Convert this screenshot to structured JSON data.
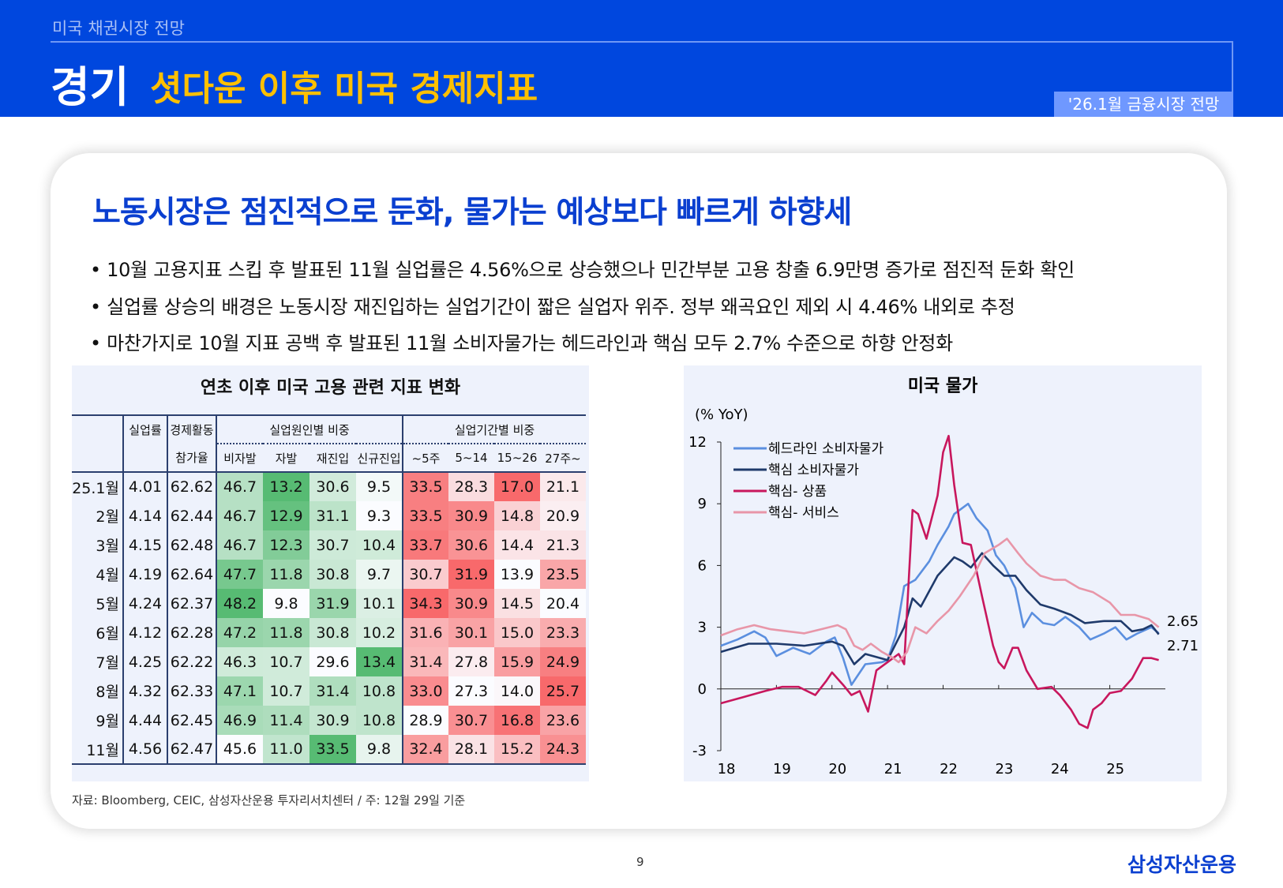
{
  "header": {
    "section": "미국 채권시장 전망",
    "category": "경기",
    "title": "셧다운 이후 미국 경제지표",
    "badge": "'26.1월 금융시장 전망"
  },
  "headline": "노동시장은 점진적으로 둔화, 물가는 예상보다 빠르게 하향세",
  "bullets": [
    "• 10월 고용지표 스킵 후 발표된 11월 실업률은 4.56%으로 상승했으나 민간부분 고용 창출 6.9만명 증가로 점진적 둔화 확인",
    "• 실업률 상승의 배경은 노동시장 재진입하는 실업기간이 짧은 실업자 위주. 정부 왜곡요인 제외 시 4.46% 내외로 추정",
    "• 마찬가지로 10월 지표 공백 후 발표된 11월 소비자물가는 헤드라인과 핵심 모두 2.7% 수준으로 하향 안정화"
  ],
  "table": {
    "title": "연초 이후 미국 고용 관련 지표 변화",
    "group_headers": [
      "실업률",
      "경제활동",
      "실업원인별 비중",
      "실업기간별 비중"
    ],
    "sub_headers": [
      "참가율",
      "비자발",
      "자발",
      "재진입",
      "신규진입",
      "~5주",
      "5~14",
      "15~26",
      "27주~"
    ],
    "heat_colors": {
      "low": "#fbfcff",
      "green": "#57bb73",
      "red": "#f8696b"
    },
    "rows": [
      [
        "25.1월",
        "4.01",
        "62.62",
        "46.7",
        "13.2",
        "30.6",
        "9.5",
        "33.5",
        "28.3",
        "17.0",
        "21.1"
      ],
      [
        "2월",
        "4.14",
        "62.44",
        "46.7",
        "12.9",
        "31.1",
        "9.3",
        "33.5",
        "30.9",
        "14.8",
        "20.9"
      ],
      [
        "3월",
        "4.15",
        "62.48",
        "46.7",
        "12.3",
        "30.7",
        "10.4",
        "33.7",
        "30.6",
        "14.4",
        "21.3"
      ],
      [
        "4월",
        "4.19",
        "62.64",
        "47.7",
        "11.8",
        "30.8",
        "9.7",
        "30.7",
        "31.9",
        "13.9",
        "23.5"
      ],
      [
        "5월",
        "4.24",
        "62.37",
        "48.2",
        "9.8",
        "31.9",
        "10.1",
        "34.3",
        "30.9",
        "14.5",
        "20.4"
      ],
      [
        "6월",
        "4.12",
        "62.28",
        "47.2",
        "11.8",
        "30.8",
        "10.2",
        "31.6",
        "30.1",
        "15.0",
        "23.3"
      ],
      [
        "7월",
        "4.25",
        "62.22",
        "46.3",
        "10.7",
        "29.6",
        "13.4",
        "31.4",
        "27.8",
        "15.9",
        "24.9"
      ],
      [
        "8월",
        "4.32",
        "62.33",
        "47.1",
        "10.7",
        "31.4",
        "10.8",
        "33.0",
        "27.3",
        "14.0",
        "25.7"
      ],
      [
        "9월",
        "4.44",
        "62.45",
        "46.9",
        "11.4",
        "30.9",
        "10.8",
        "28.9",
        "30.7",
        "16.8",
        "23.6"
      ],
      [
        "11월",
        "4.56",
        "62.47",
        "45.6",
        "11.0",
        "33.5",
        "9.8",
        "32.4",
        "28.1",
        "15.2",
        "24.3"
      ]
    ]
  },
  "chart_data": {
    "type": "line",
    "title": "미국 물가",
    "ylabel": "(% YoY)",
    "ylim": [
      -3,
      12
    ],
    "yticks": [
      "12",
      "9",
      "6",
      "3",
      "0",
      "-3"
    ],
    "xlim": [
      2018,
      2026
    ],
    "xticks": [
      "18",
      "19",
      "20",
      "21",
      "22",
      "23",
      "24",
      "25"
    ],
    "legend": "top-left",
    "grid": false,
    "end_labels": [
      "2.65",
      "2.71"
    ],
    "series": [
      {
        "name": "헤드라인 소비자물가",
        "color": "#5b8fdf",
        "points": [
          [
            2018.0,
            2.1
          ],
          [
            2018.3,
            2.4
          ],
          [
            2018.6,
            2.8
          ],
          [
            2018.8,
            2.5
          ],
          [
            2019.0,
            1.6
          ],
          [
            2019.3,
            2.0
          ],
          [
            2019.6,
            1.7
          ],
          [
            2019.9,
            2.3
          ],
          [
            2020.05,
            2.5
          ],
          [
            2020.2,
            1.5
          ],
          [
            2020.35,
            0.2
          ],
          [
            2020.6,
            1.2
          ],
          [
            2020.9,
            1.3
          ],
          [
            2021.0,
            1.4
          ],
          [
            2021.15,
            2.6
          ],
          [
            2021.3,
            5.0
          ],
          [
            2021.5,
            5.3
          ],
          [
            2021.75,
            6.2
          ],
          [
            2021.9,
            7.0
          ],
          [
            2022.1,
            7.9
          ],
          [
            2022.2,
            8.5
          ],
          [
            2022.45,
            9.0
          ],
          [
            2022.6,
            8.3
          ],
          [
            2022.8,
            7.7
          ],
          [
            2022.95,
            6.5
          ],
          [
            2023.1,
            6.0
          ],
          [
            2023.3,
            4.9
          ],
          [
            2023.45,
            3.0
          ],
          [
            2023.6,
            3.7
          ],
          [
            2023.8,
            3.2
          ],
          [
            2024.0,
            3.1
          ],
          [
            2024.2,
            3.5
          ],
          [
            2024.45,
            3.0
          ],
          [
            2024.65,
            2.4
          ],
          [
            2024.9,
            2.7
          ],
          [
            2025.1,
            3.0
          ],
          [
            2025.3,
            2.4
          ],
          [
            2025.5,
            2.7
          ],
          [
            2025.75,
            3.0
          ],
          [
            2025.88,
            2.71
          ]
        ]
      },
      {
        "name": "핵심 소비자물가",
        "color": "#1f3a6b",
        "points": [
          [
            2018.0,
            1.8
          ],
          [
            2018.5,
            2.2
          ],
          [
            2019.0,
            2.2
          ],
          [
            2019.5,
            2.1
          ],
          [
            2020.0,
            2.3
          ],
          [
            2020.2,
            2.1
          ],
          [
            2020.4,
            1.2
          ],
          [
            2020.6,
            1.7
          ],
          [
            2021.0,
            1.4
          ],
          [
            2021.3,
            3.0
          ],
          [
            2021.45,
            4.4
          ],
          [
            2021.6,
            4.0
          ],
          [
            2021.9,
            5.5
          ],
          [
            2022.2,
            6.4
          ],
          [
            2022.35,
            6.2
          ],
          [
            2022.5,
            5.9
          ],
          [
            2022.7,
            6.6
          ],
          [
            2022.9,
            6.0
          ],
          [
            2023.1,
            5.5
          ],
          [
            2023.3,
            5.5
          ],
          [
            2023.5,
            4.8
          ],
          [
            2023.75,
            4.1
          ],
          [
            2024.0,
            3.9
          ],
          [
            2024.3,
            3.6
          ],
          [
            2024.55,
            3.2
          ],
          [
            2024.9,
            3.3
          ],
          [
            2025.2,
            3.3
          ],
          [
            2025.4,
            2.8
          ],
          [
            2025.6,
            2.9
          ],
          [
            2025.75,
            3.1
          ],
          [
            2025.88,
            2.65
          ]
        ]
      },
      {
        "name": "핵심- 상품",
        "color": "#c8175d",
        "points": [
          [
            2018.0,
            -0.7
          ],
          [
            2018.4,
            -0.4
          ],
          [
            2018.8,
            -0.1
          ],
          [
            2019.1,
            0.1
          ],
          [
            2019.4,
            0.1
          ],
          [
            2019.7,
            -0.3
          ],
          [
            2019.9,
            0.4
          ],
          [
            2020.0,
            0.8
          ],
          [
            2020.2,
            0.2
          ],
          [
            2020.35,
            -0.3
          ],
          [
            2020.5,
            -0.1
          ],
          [
            2020.65,
            -1.1
          ],
          [
            2020.8,
            0.9
          ],
          [
            2021.0,
            1.3
          ],
          [
            2021.2,
            1.7
          ],
          [
            2021.3,
            1.2
          ],
          [
            2021.45,
            8.7
          ],
          [
            2021.55,
            8.5
          ],
          [
            2021.7,
            7.3
          ],
          [
            2021.9,
            9.4
          ],
          [
            2022.0,
            11.5
          ],
          [
            2022.1,
            12.3
          ],
          [
            2022.2,
            9.9
          ],
          [
            2022.35,
            7.1
          ],
          [
            2022.5,
            7.0
          ],
          [
            2022.7,
            4.5
          ],
          [
            2022.9,
            2.1
          ],
          [
            2023.0,
            1.3
          ],
          [
            2023.1,
            1.0
          ],
          [
            2023.25,
            2.0
          ],
          [
            2023.35,
            2.0
          ],
          [
            2023.5,
            0.9
          ],
          [
            2023.7,
            0.0
          ],
          [
            2023.95,
            0.1
          ],
          [
            2024.1,
            -0.3
          ],
          [
            2024.3,
            -1.0
          ],
          [
            2024.45,
            -1.7
          ],
          [
            2024.6,
            -1.9
          ],
          [
            2024.7,
            -1.0
          ],
          [
            2024.85,
            -0.7
          ],
          [
            2025.0,
            -0.2
          ],
          [
            2025.2,
            -0.1
          ],
          [
            2025.4,
            0.5
          ],
          [
            2025.6,
            1.5
          ],
          [
            2025.75,
            1.5
          ],
          [
            2025.88,
            1.4
          ]
        ]
      },
      {
        "name": "핵심- 서비스",
        "color": "#e896a8",
        "points": [
          [
            2018.0,
            2.6
          ],
          [
            2018.3,
            2.9
          ],
          [
            2018.6,
            3.1
          ],
          [
            2018.9,
            2.9
          ],
          [
            2019.2,
            2.8
          ],
          [
            2019.5,
            2.7
          ],
          [
            2019.8,
            2.9
          ],
          [
            2020.1,
            3.1
          ],
          [
            2020.25,
            2.9
          ],
          [
            2020.4,
            2.1
          ],
          [
            2020.55,
            1.9
          ],
          [
            2020.7,
            2.2
          ],
          [
            2020.9,
            1.8
          ],
          [
            2021.1,
            1.5
          ],
          [
            2021.2,
            1.3
          ],
          [
            2021.35,
            1.8
          ],
          [
            2021.5,
            3.0
          ],
          [
            2021.7,
            2.7
          ],
          [
            2021.9,
            3.3
          ],
          [
            2022.1,
            3.8
          ],
          [
            2022.3,
            4.5
          ],
          [
            2022.55,
            5.5
          ],
          [
            2022.75,
            6.6
          ],
          [
            2023.0,
            7.0
          ],
          [
            2023.15,
            7.3
          ],
          [
            2023.35,
            6.6
          ],
          [
            2023.5,
            6.1
          ],
          [
            2023.75,
            5.5
          ],
          [
            2024.0,
            5.3
          ],
          [
            2024.2,
            5.3
          ],
          [
            2024.45,
            4.9
          ],
          [
            2024.7,
            4.7
          ],
          [
            2025.0,
            4.2
          ],
          [
            2025.2,
            3.6
          ],
          [
            2025.45,
            3.6
          ],
          [
            2025.7,
            3.4
          ],
          [
            2025.88,
            3.0
          ]
        ]
      }
    ]
  },
  "footer": {
    "source": "자료: Bloomberg, CEIC, 삼성자산운용 투자리서치센터 / 주: 12월 29일 기준",
    "page": "9",
    "logo": "삼성자산운용"
  }
}
